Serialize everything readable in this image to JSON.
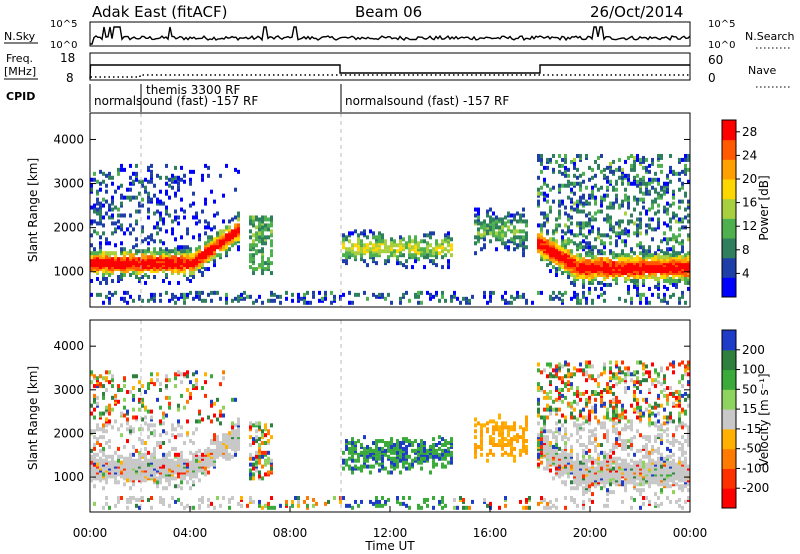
{
  "header": {
    "title": "Adak East (fitACF)",
    "beam": "Beam 06",
    "date": "26/Oct/2014"
  },
  "panels": {
    "nsky_label": "N.Sky",
    "nsky_ticks": [
      "10^5",
      "10^0"
    ],
    "nsearch_label": "N.Search",
    "nsearch_ticks": [
      "10^5",
      "10^0"
    ],
    "freq_label_1": "Freq.",
    "freq_label_2": "[MHz]",
    "freq_ticks": [
      "18",
      "8"
    ],
    "nave_label": "Nave",
    "nave_ticks": [
      "60",
      "0"
    ],
    "cpid_label": "CPID",
    "cpid_segments": [
      {
        "label": "normalsound (fast) -157 RF"
      },
      {
        "label": "themis 3300 RF"
      },
      {
        "label": "normalsound (fast) -157 RF"
      }
    ]
  },
  "chart_data": [
    {
      "type": "heatmap",
      "name": "power",
      "ylabel": "Slant Range [km]",
      "yticks": [
        1000,
        2000,
        3000,
        4000
      ],
      "ylim": [
        200,
        4600
      ],
      "colorbar_label": "Power [dB]",
      "colorbar_ticks": [
        4,
        8,
        12,
        16,
        20,
        24,
        28
      ],
      "colorbar_range": [
        0,
        30
      ],
      "colors": [
        "#0000ff",
        "#1f3fa8",
        "#2f7f5f",
        "#4fb04f",
        "#a8cf3f",
        "#ffd700",
        "#ff9f00",
        "#ff5a00",
        "#ff0000"
      ]
    },
    {
      "type": "heatmap",
      "name": "velocity",
      "ylabel": "Slant Range [km]",
      "yticks": [
        1000,
        2000,
        3000,
        4000
      ],
      "ylim": [
        200,
        4600
      ],
      "colorbar_label": "Velocity [m s⁻¹]",
      "colorbar_ticks": [
        200,
        100,
        50,
        15,
        -15,
        -50,
        -100,
        -200
      ],
      "colors": [
        "#1e3cc8",
        "#2f7f3f",
        "#3aaa3a",
        "#8fd35f",
        "#c8c8c8",
        "#ffb000",
        "#ff7a00",
        "#ff3000",
        "#ff0000"
      ]
    }
  ],
  "xaxis": {
    "ticks": [
      "00:00",
      "04:00",
      "08:00",
      "12:00",
      "16:00",
      "20:00",
      "00:00"
    ],
    "label": "Time UT"
  }
}
